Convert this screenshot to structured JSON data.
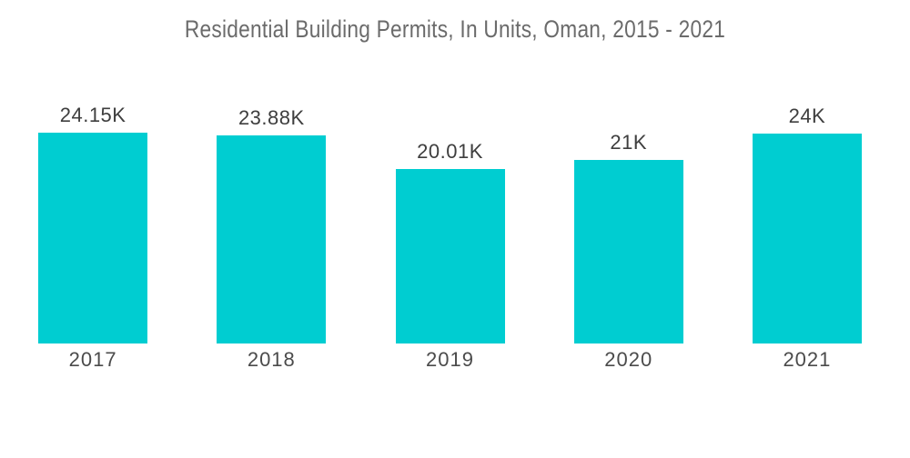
{
  "page": {
    "background_color": "#ffffff"
  },
  "chart_data": {
    "type": "bar",
    "title": "Residential Building Permits, In Units, Oman, 2015 - 2021",
    "categories": [
      "2017",
      "2018",
      "2019",
      "2020",
      "2021"
    ],
    "values": [
      24150,
      23880,
      20010,
      21000,
      24000
    ],
    "value_labels": [
      "24.15K",
      "23.88K",
      "20.01K",
      "21K",
      "24K"
    ],
    "xlabel": "",
    "ylabel": "",
    "ylim": [
      0,
      24150
    ],
    "grid": false,
    "legend": false,
    "bar_color": "#00CDD1",
    "title_color": "#6B6B6B",
    "value_label_color": "#3E3E3E",
    "axis_label_color": "#4B4B4B"
  }
}
